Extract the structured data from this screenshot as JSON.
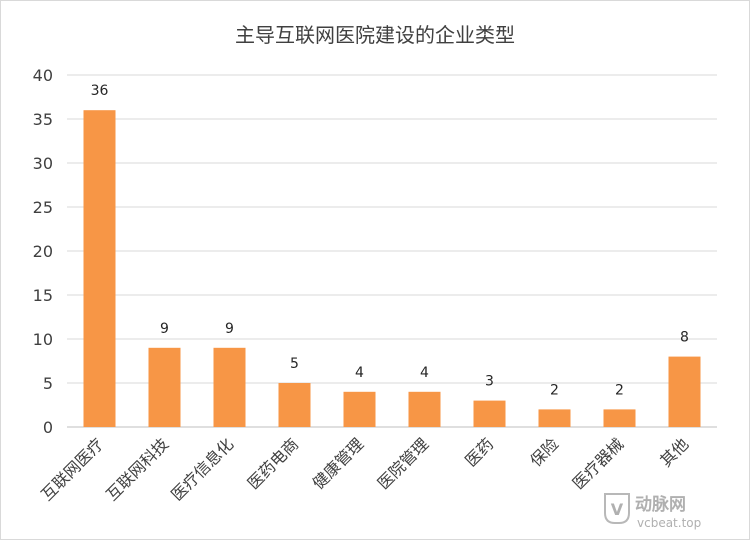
{
  "chart_data": {
    "type": "bar",
    "title": "主导互联网医院建设的企业类型",
    "categories": [
      "互联网医疗",
      "互联网科技",
      "医疗信息化",
      "医药电商",
      "健康管理",
      "医院管理",
      "医药",
      "保险",
      "医疗器械",
      "其他"
    ],
    "values": [
      36,
      9,
      9,
      5,
      4,
      4,
      3,
      2,
      2,
      8
    ],
    "data_labels": [
      "36",
      "9",
      "9",
      "5",
      "4",
      "4",
      "3",
      "2",
      "2",
      "8"
    ],
    "y_ticks": [
      "0",
      "5",
      "10",
      "15",
      "20",
      "25",
      "30",
      "35",
      "40"
    ],
    "ylim": [
      0,
      40
    ],
    "grid": true,
    "bar_color": "#F79646"
  },
  "watermark": {
    "logo_mark": "V",
    "brand": "动脉网",
    "site": "vcbeat.top"
  }
}
